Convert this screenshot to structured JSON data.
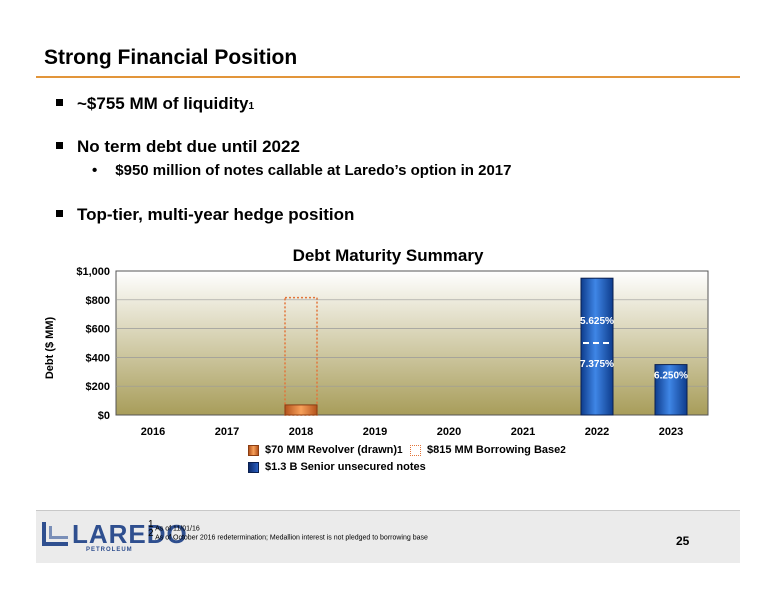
{
  "slide": {
    "title": "Strong Financial Position",
    "page_number": "25"
  },
  "bullets": [
    {
      "text": "~$755 MM of liquidity",
      "sup": "1"
    },
    {
      "text": "No term debt due until 2022",
      "sub": "$950 million of notes callable at Laredo’s option in 2017"
    },
    {
      "text": "Top-tier, multi-year hedge position"
    }
  ],
  "chart_data": {
    "type": "bar",
    "title": "Debt Maturity Summary",
    "ylabel": "Debt ($ MM)",
    "xlabel": "",
    "ylim": [
      0,
      1000
    ],
    "yticks": [
      "$0",
      "$200",
      "$400",
      "$600",
      "$800",
      "$1,000"
    ],
    "categories": [
      "2016",
      "2017",
      "2018",
      "2019",
      "2020",
      "2021",
      "2022",
      "2023"
    ],
    "series": [
      {
        "name": "$70 MM Revolver (drawn)",
        "sup": "1",
        "values": [
          0,
          0,
          70,
          0,
          0,
          0,
          0,
          0
        ]
      },
      {
        "name": "$815 MM Borrowing Base",
        "sup": "2",
        "values": [
          0,
          0,
          815,
          0,
          0,
          0,
          0,
          0
        ]
      },
      {
        "name": "$1.3 B Senior unsecured notes",
        "values": [
          0,
          0,
          0,
          0,
          0,
          0,
          950,
          350
        ]
      }
    ],
    "annotations": [
      {
        "category": "2022",
        "label": "5.625%",
        "value": 450
      },
      {
        "category": "2022",
        "label": "7.375%",
        "value": 500
      },
      {
        "category": "2023",
        "label": "6.250%",
        "value": 350
      }
    ],
    "grid": true,
    "legend_position": "bottom"
  },
  "footnotes": [
    {
      "sup": "1",
      "text": "As of 11/01/16"
    },
    {
      "sup": "2",
      "text": "As of October 2016 redetermination; Medallion interest is not pledged to borrowing base"
    }
  ],
  "logo": {
    "name": "LAREDO",
    "sub": "PETROLEUM"
  },
  "colors": {
    "accent": "#e2953a",
    "revolver": "#f28c3c",
    "notes": "#1f5fbf",
    "brand": "#2f4f8f"
  }
}
